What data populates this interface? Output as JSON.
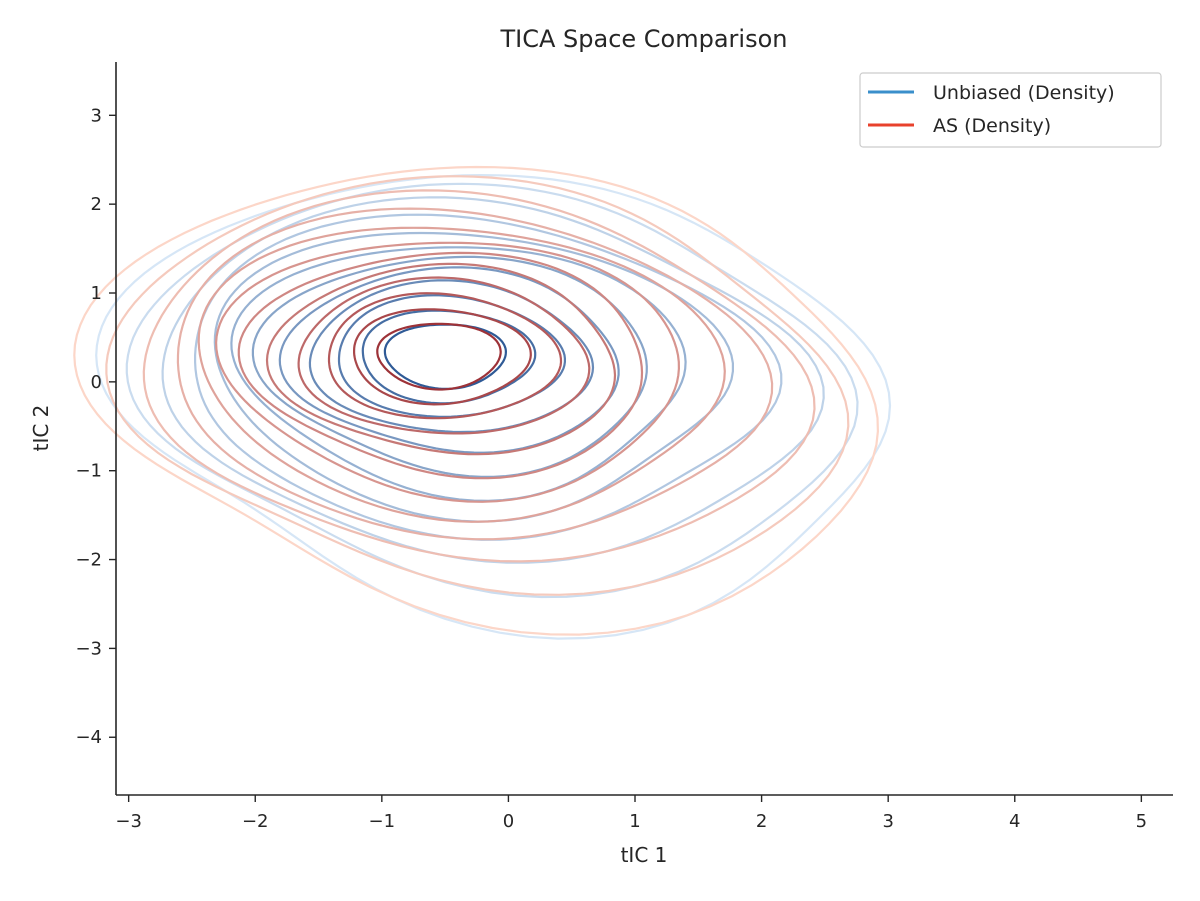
{
  "chart_data": {
    "type": "contour",
    "title": "TICA Space Comparison",
    "xlabel": "tIC 1",
    "ylabel": "tIC 2",
    "xlim": [
      -3.1,
      5.25
    ],
    "ylim": [
      -4.65,
      3.6
    ],
    "x_ticks": [
      -3,
      -2,
      -1,
      0,
      1,
      2,
      3,
      4,
      5
    ],
    "x_tick_labels": [
      "−3",
      "−2",
      "−1",
      "0",
      "1",
      "2",
      "3",
      "4",
      "5"
    ],
    "y_ticks": [
      -4,
      -3,
      -2,
      -1,
      0,
      1,
      2,
      3
    ],
    "y_tick_labels": [
      "−4",
      "−3",
      "−2",
      "−1",
      "0",
      "1",
      "2",
      "3"
    ],
    "grid": false,
    "legend_position": "top-right",
    "series": [
      {
        "name": "Unbiased (Density)",
        "color": "#3a8fcb",
        "levels": 12,
        "peaks": [
          {
            "x": -0.5,
            "y": 0.3,
            "weight": 1.0
          },
          {
            "x": 2.3,
            "y": -0.4,
            "weight": 0.12
          },
          {
            "x": 0.1,
            "y": -1.9,
            "weight": 0.18
          }
        ]
      },
      {
        "name": "AS (Density)",
        "color": "#e8412c",
        "levels": 12,
        "peaks": [
          {
            "x": -0.55,
            "y": 0.3,
            "weight": 1.0
          },
          {
            "x": 1.8,
            "y": -0.6,
            "weight": 0.1
          },
          {
            "x": 0.0,
            "y": -1.6,
            "weight": 0.15
          }
        ]
      }
    ]
  }
}
